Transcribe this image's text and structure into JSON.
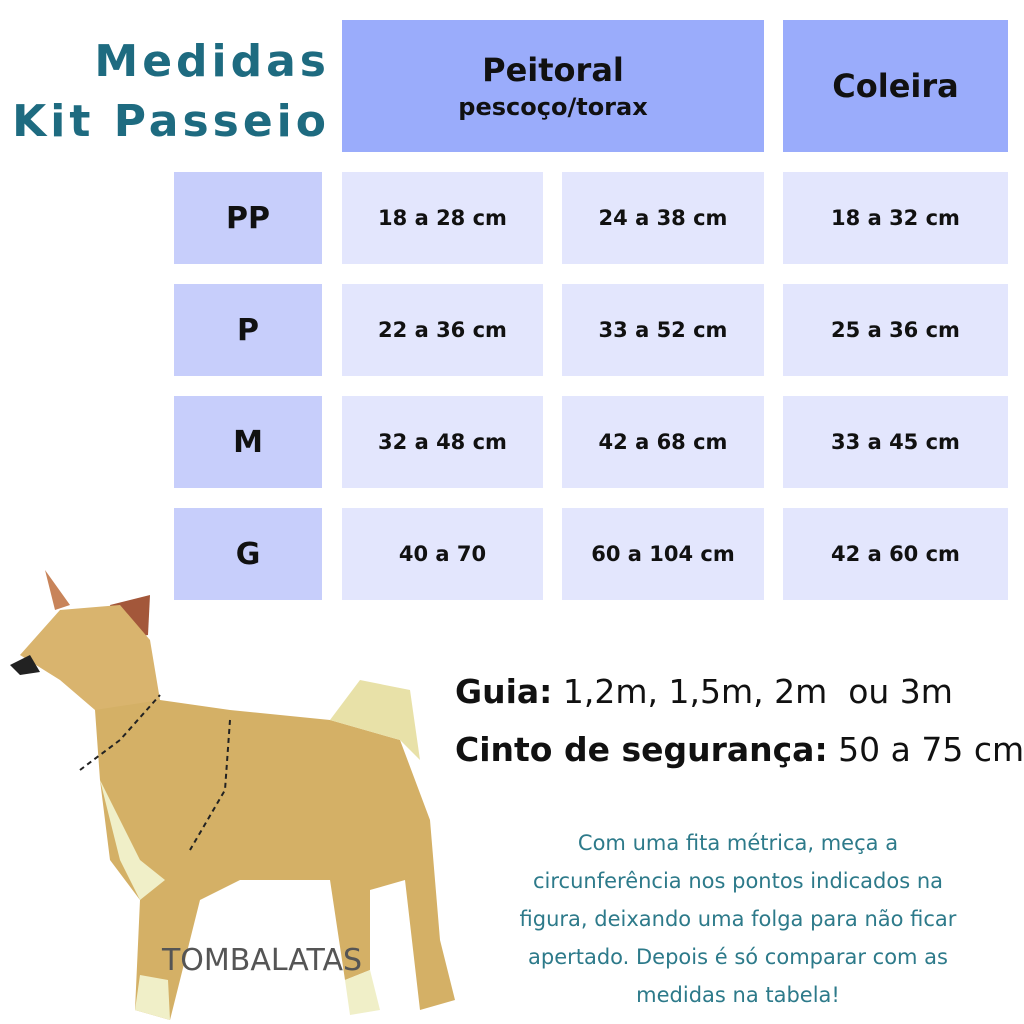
{
  "title": {
    "line1": "Medidas",
    "line2": "Kit Passeio"
  },
  "table": {
    "headers": [
      {
        "title": "Peitoral",
        "subtitle": "pescoço/torax"
      },
      {
        "title": "Coleira"
      }
    ],
    "rows": [
      [
        "PP",
        "18 a 28 cm",
        "24 a 38 cm",
        "18 a 32 cm"
      ],
      [
        "P",
        "22 a 36 cm",
        "33 a 52 cm",
        "25 a 36 cm"
      ],
      [
        "M",
        "32 a 48 cm",
        "42 a 68 cm",
        "33 a 45 cm"
      ],
      [
        "G",
        "40 a 70",
        "60 a 104 cm",
        "42 a 60 cm"
      ]
    ]
  },
  "specs": [
    {
      "label": "Guia:",
      "value": "1,2m, 1,5m, 2m  ou 3m"
    },
    {
      "label": "Cinto de segurança:",
      "value": "50 a 75 cm"
    }
  ],
  "instructions": [
    "Com uma fita métrica, meça a",
    "circunferência nos pontos indicados na",
    "figura, deixando uma folga para não ficar",
    "apertado. Depois é só comparar com as",
    "medidas na tabela!"
  ],
  "logo": "TOMBALATAS"
}
